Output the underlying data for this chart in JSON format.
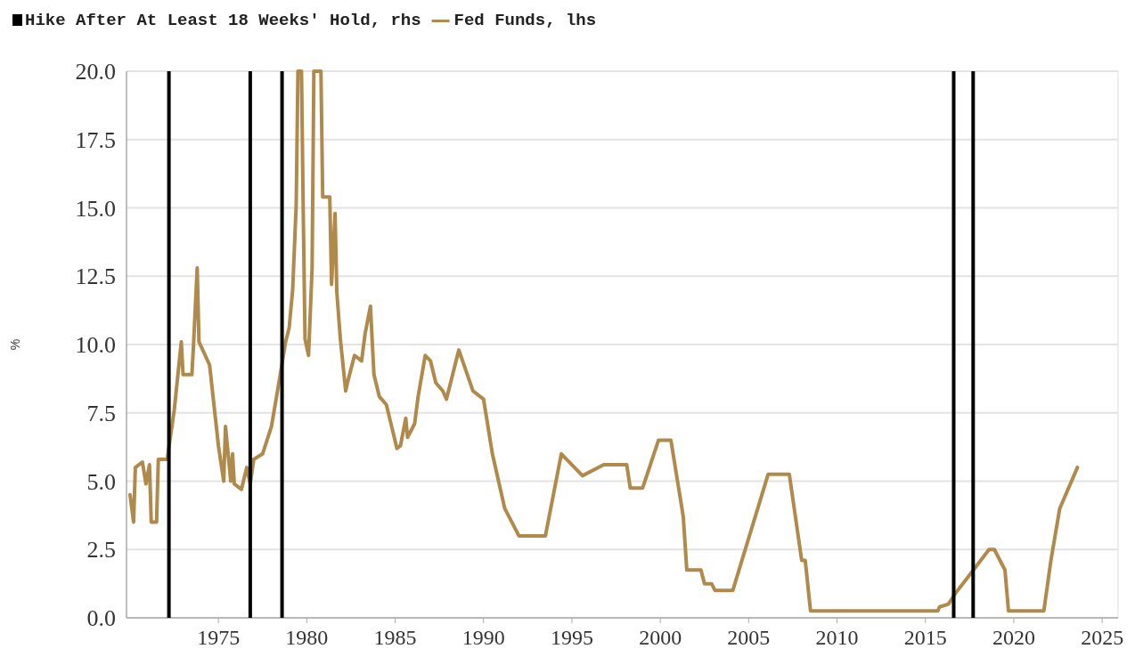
{
  "chart_data": {
    "type": "line",
    "ylabel": "%",
    "legend": "top left",
    "grid": "y",
    "xlim": [
      1969.8,
      2025.9
    ],
    "xticks": [
      1975,
      1980,
      1985,
      1990,
      1995,
      2000,
      2005,
      2010,
      2015,
      2020,
      2025
    ],
    "ylim": [
      0,
      20
    ],
    "yticks": [
      {
        "value": 0,
        "label": "0.0"
      },
      {
        "value": 2.5,
        "label": "2.5"
      },
      {
        "value": 5,
        "label": "5.0"
      },
      {
        "value": 7.5,
        "label": "7.5"
      },
      {
        "value": 10,
        "label": "10.0"
      },
      {
        "value": 12.5,
        "label": "12.5"
      },
      {
        "value": 15,
        "label": "15.0"
      },
      {
        "value": 17.5,
        "label": "17.5"
      },
      {
        "value": 20,
        "label": "20.0"
      }
    ],
    "series": [
      {
        "name": "Hike After At Least 18 Weeks' Hold, rhs",
        "type": "bar",
        "color": "#000000",
        "x": [
          1972.2,
          1976.8,
          1978.6,
          2016.6,
          2017.7
        ],
        "values": [
          20,
          20,
          20,
          20,
          20
        ]
      },
      {
        "name": "Fed Funds, lhs",
        "color": "#b08a4a",
        "x": [
          1970.0,
          1970.2,
          1970.3,
          1970.7,
          1970.9,
          1971.1,
          1971.2,
          1971.5,
          1971.6,
          1972.1,
          1972.5,
          1972.9,
          1973.0,
          1973.5,
          1973.6,
          1973.8,
          1973.9,
          1974.5,
          1975.0,
          1975.3,
          1975.4,
          1975.7,
          1975.8,
          1975.9,
          1976.3,
          1976.6,
          1976.8,
          1977.0,
          1977.5,
          1978.0,
          1978.5,
          1978.8,
          1979.0,
          1979.2,
          1979.4,
          1979.5,
          1979.7,
          1979.8,
          1979.9,
          1980.1,
          1980.3,
          1980.4,
          1980.8,
          1980.9,
          1981.3,
          1981.4,
          1981.6,
          1981.7,
          1981.9,
          1982.2,
          1982.3,
          1982.7,
          1983.1,
          1983.3,
          1983.6,
          1983.8,
          1984.1,
          1984.5,
          1984.8,
          1985.1,
          1985.3,
          1985.6,
          1985.7,
          1986.1,
          1986.3,
          1986.7,
          1987.0,
          1987.3,
          1987.7,
          1987.9,
          1988.6,
          1989.4,
          1990.0,
          1990.5,
          1991.2,
          1992.0,
          1993.5,
          1994.4,
          1995.6,
          1996.8,
          1998.1,
          1998.3,
          1999.0,
          1999.9,
          2000.6,
          2001.3,
          2001.5,
          2002.3,
          2002.5,
          2002.9,
          2003.1,
          2004.1,
          2006.1,
          2007.3,
          2008.0,
          2008.2,
          2008.5,
          2015.7,
          2015.8,
          2016.3,
          2016.7,
          2017.3,
          2018.6,
          2018.9,
          2019.5,
          2019.7,
          2021.7,
          2022.1,
          2022.6,
          2023.6
        ],
        "values": [
          4.5,
          3.5,
          5.5,
          5.7,
          4.9,
          5.6,
          3.5,
          3.5,
          5.8,
          5.8,
          7.6,
          10.1,
          8.9,
          8.9,
          10.1,
          12.8,
          10.1,
          9.25,
          6.3,
          5.0,
          7.0,
          5.0,
          6.0,
          4.9,
          4.7,
          5.5,
          4.9,
          5.8,
          6.0,
          7.0,
          8.9,
          10.1,
          10.6,
          12.0,
          15.1,
          20,
          20,
          14.8,
          10.2,
          9.6,
          12.8,
          20,
          20,
          15.4,
          15.4,
          12.2,
          14.8,
          11.9,
          10.2,
          8.3,
          8.6,
          9.6,
          9.4,
          10.4,
          11.4,
          8.9,
          8.1,
          7.8,
          7.0,
          6.2,
          6.3,
          7.3,
          6.6,
          7.1,
          8.1,
          9.6,
          9.4,
          8.6,
          8.3,
          8.0,
          9.8,
          8.3,
          8.0,
          6.0,
          4.0,
          3.0,
          3.0,
          6.0,
          5.2,
          5.6,
          5.6,
          4.75,
          4.75,
          6.5,
          6.5,
          3.7,
          1.75,
          1.75,
          1.25,
          1.25,
          1.0,
          1.0,
          5.25,
          5.25,
          2.1,
          2.1,
          0.25,
          0.25,
          0.4,
          0.5,
          0.9,
          1.4,
          2.5,
          2.5,
          1.75,
          0.25,
          0.25,
          2.1,
          4.0,
          5.5
        ]
      }
    ]
  }
}
